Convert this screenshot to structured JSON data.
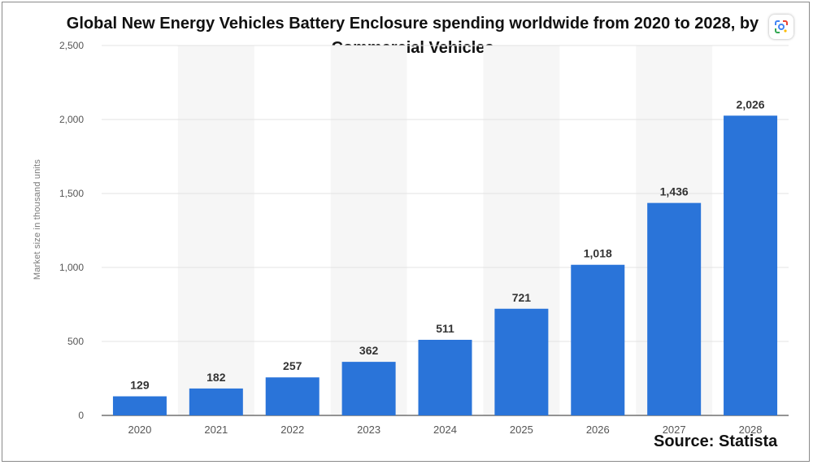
{
  "chart_data": {
    "type": "bar",
    "title": "Global New Energy Vehicles Battery Enclosure spending worldwide from 2020 to 2028, by Commercial Vehicles",
    "title_line1": "Global New Energy Vehicles Battery Enclosure spending worldwide from 2020 to 2028, by",
    "title_line2": "Commercial Vehicles",
    "xlabel": "",
    "ylabel": "Market size in thousand units",
    "categories": [
      "2020",
      "2021",
      "2022",
      "2023",
      "2024",
      "2025",
      "2026",
      "2027",
      "2028"
    ],
    "values": [
      129,
      182,
      257,
      362,
      511,
      721,
      1018,
      1436,
      2026
    ],
    "value_labels": [
      "129",
      "182",
      "257",
      "362",
      "511",
      "721",
      "1,018",
      "1,436",
      "2,026"
    ],
    "ylim": [
      0,
      2500
    ],
    "yticks": [
      0,
      500,
      1000,
      1500,
      2000,
      2500
    ],
    "ytick_labels": [
      "0",
      "500",
      "1,000",
      "1,500",
      "2,000",
      "2,500"
    ],
    "grid": true,
    "bar_color": "#2a74d9",
    "source": "Source: Statista"
  },
  "overlay": {
    "lens_icon": "google-lens-icon"
  }
}
